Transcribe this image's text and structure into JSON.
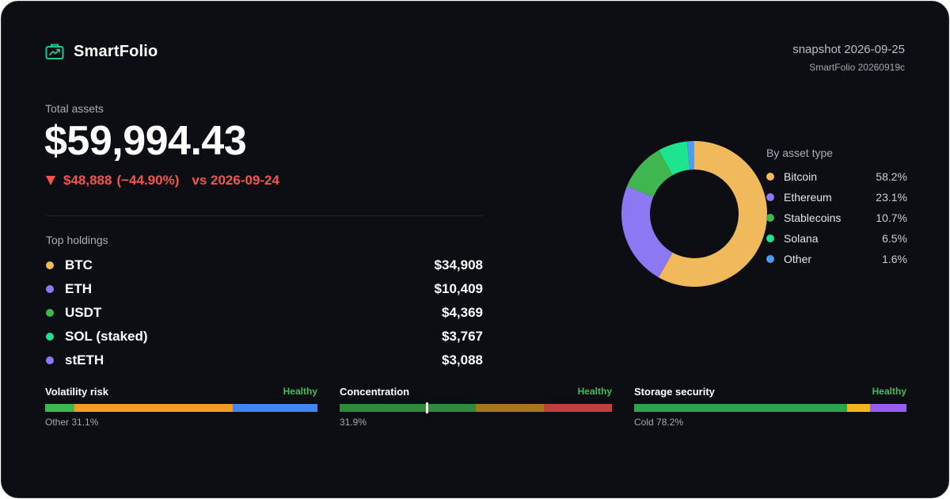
{
  "brand": {
    "name": "SmartFolio",
    "icon": "briefcase-chart-icon"
  },
  "snapshot": "snapshot 2026-09-25",
  "version": "SmartFolio 20260919c",
  "total": {
    "label": "Total assets",
    "value": "$59,994.43",
    "change_amount": "$48,888",
    "change_pct": "(−44.90%)",
    "vs": "vs 2026-09-24",
    "change_color": "#f2574f"
  },
  "holdings": {
    "label": "Top holdings",
    "items": [
      {
        "symbol": "BTC",
        "value": "$34,908",
        "color": "#f0b95c"
      },
      {
        "symbol": "ETH",
        "value": "$10,409",
        "color": "#8b78f2"
      },
      {
        "symbol": "USDT",
        "value": "$4,369",
        "color": "#3fb64f"
      },
      {
        "symbol": "SOL (staked)",
        "value": "$3,767",
        "color": "#1ee38f"
      },
      {
        "symbol": "stETH",
        "value": "$3,088",
        "color": "#8b78f2"
      }
    ]
  },
  "chart_data": {
    "type": "pie",
    "title": "By asset type",
    "slices": [
      {
        "name": "Bitcoin",
        "value": 58.2,
        "label": "58.2%",
        "color": "#f0b95c"
      },
      {
        "name": "Ethereum",
        "value": 23.1,
        "label": "23.1%",
        "color": "#8b78f2"
      },
      {
        "name": "Stablecoins",
        "value": 10.7,
        "label": "10.7%",
        "color": "#3fb64f"
      },
      {
        "name": "Solana",
        "value": 6.5,
        "label": "6.5%",
        "color": "#1ee38f"
      },
      {
        "name": "Other",
        "value": 1.6,
        "label": "1.6%",
        "color": "#4f9cf0"
      }
    ]
  },
  "meters": [
    {
      "title": "Volatility risk",
      "status": "Healthy",
      "note": "Other 31.1%",
      "segments": [
        {
          "fraction": 0.108,
          "color": "#3fb64f"
        },
        {
          "fraction": 0.582,
          "color": "#f59b23"
        },
        {
          "fraction": 0.31,
          "color": "#3f86f2"
        }
      ]
    },
    {
      "title": "Concentration",
      "status": "Healthy",
      "note": "31.9%",
      "marker": 0.319,
      "segments": [
        {
          "fraction": 0.5,
          "color": "#2f8a3a"
        },
        {
          "fraction": 0.25,
          "color": "#a7761d"
        },
        {
          "fraction": 0.25,
          "color": "#c0413b"
        }
      ]
    },
    {
      "title": "Storage security",
      "status": "Healthy",
      "note": "Cold 78.2%",
      "segments": [
        {
          "fraction": 0.782,
          "color": "#2ea44f"
        },
        {
          "fraction": 0.083,
          "color": "#f2b51c"
        },
        {
          "fraction": 0.135,
          "color": "#9a5cf2"
        }
      ]
    }
  ]
}
